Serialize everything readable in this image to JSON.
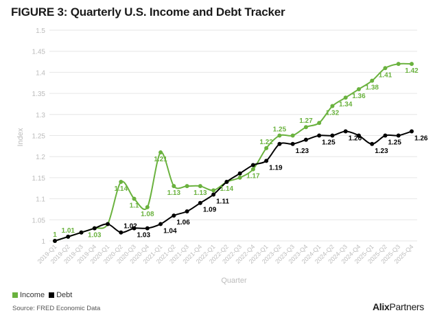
{
  "title": "FIGURE 3: Quarterly U.S. Income and Debt Tracker",
  "legend": {
    "income_label": "Income",
    "debt_label": "Debt"
  },
  "source": "Source: FRED Economic Data",
  "brand": {
    "bold": "Alix",
    "rest": "Partners"
  },
  "colors": {
    "income": "#6ab23e",
    "debt": "#000000",
    "grid": "#e6e6e6",
    "axis_text": "#bbbbbb"
  },
  "chart_data": {
    "type": "line",
    "xlabel": "Quarter",
    "ylabel": "Index",
    "ylim": [
      1,
      1.5
    ],
    "yticks": [
      "1",
      "1.05",
      "1.1",
      "1.15",
      "1.2",
      "1.25",
      "1.3",
      "1.35",
      "1.4",
      "1.45",
      "1.5"
    ],
    "categories": [
      "2019-Q1",
      "2019-Q2",
      "2019-Q3",
      "2019-Q4",
      "2020-Q1",
      "2020-Q2",
      "2020-Q3",
      "2020-Q4",
      "2021-Q1",
      "2021-Q2",
      "2021-Q3",
      "2021-Q4",
      "2022-Q1",
      "2022-Q2",
      "2022-Q3",
      "2022-Q4",
      "2023-Q1",
      "2023-Q2",
      "2023-Q3",
      "2023-Q4",
      "2024-Q1",
      "2024-Q2",
      "2024-Q3",
      "2024-Q4",
      "2025-Q1",
      "2025-Q2",
      "2025-Q3",
      "2025-Q4"
    ],
    "series": [
      {
        "name": "Income",
        "values": [
          1.0,
          1.01,
          1.02,
          1.03,
          1.04,
          1.14,
          1.1,
          1.08,
          1.21,
          1.13,
          1.13,
          1.13,
          1.12,
          1.14,
          1.15,
          1.17,
          1.22,
          1.25,
          1.25,
          1.27,
          1.28,
          1.32,
          1.34,
          1.36,
          1.38,
          1.41,
          1.42,
          1.42
        ],
        "labels": [
          "1",
          "1.01",
          "",
          "1.03",
          "",
          "1.14",
          "1.1",
          "1.08",
          "1.21",
          "1.13",
          "",
          "1.13",
          "",
          "1.14",
          "",
          "1.17",
          "1.22",
          "1.25",
          "",
          "1.27",
          "",
          "1.32",
          "1.34",
          "1.36",
          "1.38",
          "1.41",
          "",
          "1.42"
        ],
        "label_pos": [
          "above",
          "above",
          "",
          "below",
          "",
          "below",
          "below",
          "below",
          "below",
          "below",
          "",
          "below",
          "",
          "below",
          "",
          "below",
          "above",
          "above",
          "",
          "above",
          "",
          "below",
          "below",
          "below",
          "below",
          "below",
          "",
          "below"
        ]
      },
      {
        "name": "Debt",
        "values": [
          1.0,
          1.01,
          1.02,
          1.03,
          1.04,
          1.02,
          1.03,
          1.03,
          1.04,
          1.06,
          1.07,
          1.09,
          1.11,
          1.14,
          1.16,
          1.18,
          1.19,
          1.23,
          1.23,
          1.24,
          1.25,
          1.25,
          1.26,
          1.25,
          1.23,
          1.25,
          1.25,
          1.26
        ],
        "labels": [
          "",
          "",
          "",
          "",
          "",
          "1.02",
          "1.03",
          "",
          "1.04",
          "1.06",
          "",
          "1.09",
          "1.11",
          "",
          "",
          "",
          "1.19",
          "",
          "1.23",
          "",
          "1.25",
          "",
          "1.26",
          "",
          "1.23",
          "1.25",
          "",
          "1.26"
        ],
        "label_pos": [
          "",
          "",
          "",
          "",
          "",
          "above",
          "below",
          "",
          "below",
          "below",
          "",
          "below",
          "below",
          "",
          "",
          "",
          "below",
          "",
          "below",
          "",
          "below",
          "",
          "below",
          "",
          "below",
          "below",
          "",
          "below"
        ]
      }
    ]
  }
}
